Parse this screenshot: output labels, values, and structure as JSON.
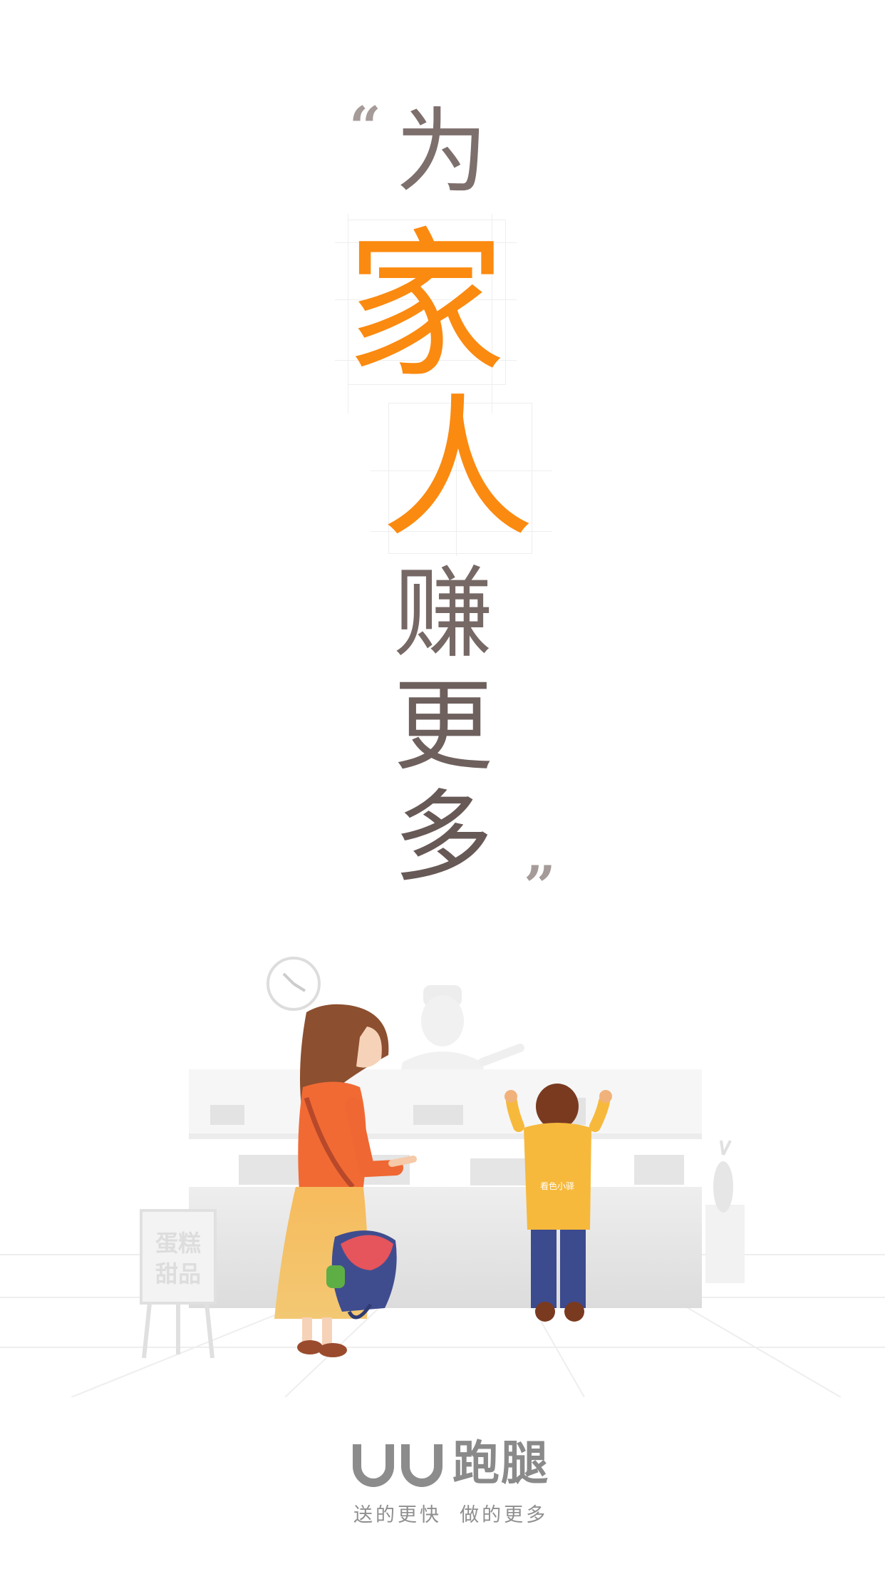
{
  "headline": {
    "quote_open": "“",
    "chars": [
      "为",
      "家",
      "人",
      "赚",
      "更",
      "多"
    ],
    "quote_close": "”"
  },
  "scene": {
    "sign_line1": "蛋糕",
    "sign_line2": "甜品",
    "child_shirt_text": "看色小驿"
  },
  "brand": {
    "name": "跑腿",
    "slogan": "送的更快  做的更多"
  },
  "colors": {
    "accent": "#fb8a10",
    "headline_dark": "#6e605d",
    "brand_gray": "#8c8c8c"
  }
}
